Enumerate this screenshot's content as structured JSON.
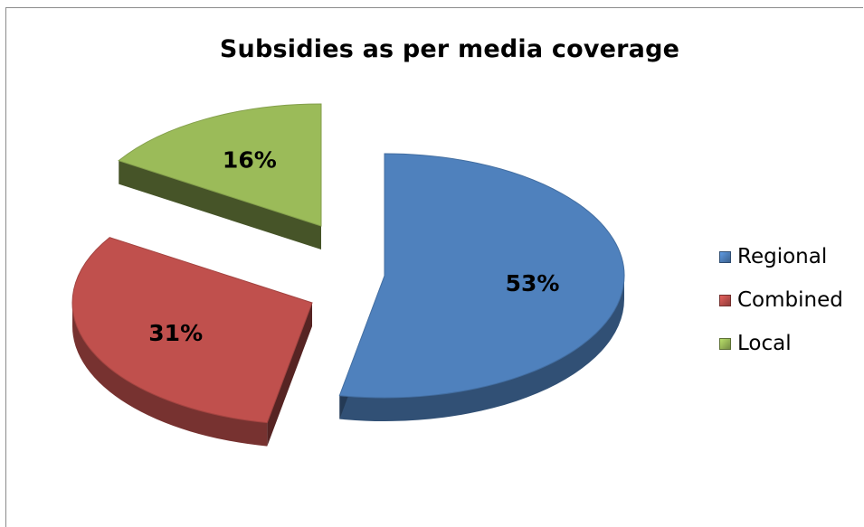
{
  "chart_data": {
    "type": "pie",
    "title": "Subsidies as per media coverage",
    "categories": [
      "Regional",
      "Combined",
      "Local"
    ],
    "values": [
      53,
      31,
      16
    ],
    "labels": [
      "53%",
      "31%",
      "16%"
    ],
    "colors": [
      "#4f81bd",
      "#c0504d",
      "#9bbb59"
    ],
    "legend_position": "right"
  }
}
